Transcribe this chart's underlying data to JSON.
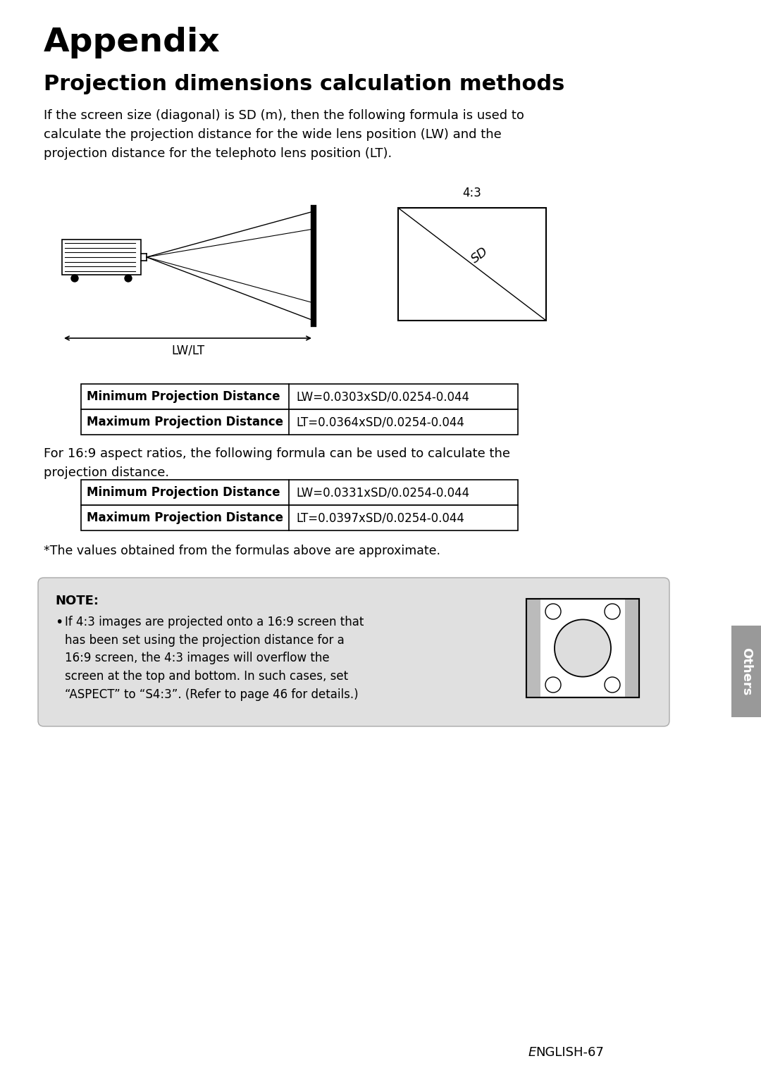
{
  "title": "Appendix",
  "subtitle": "Projection dimensions calculation methods",
  "body_text": "If the screen size (diagonal) is SD (m), then the following formula is used to\ncalculate the projection distance for the wide lens position (LW) and the\nprojection distance for the telephoto lens position (LT).",
  "table1_rows": [
    [
      "Minimum Projection Distance",
      "LW=0.0303xSD/0.0254-0.044"
    ],
    [
      "Maximum Projection Distance",
      "LT=0.0364xSD/0.0254-0.044"
    ]
  ],
  "table2_intro": "For 16:9 aspect ratios, the following formula can be used to calculate the\nprojection distance.",
  "table2_rows": [
    [
      "Minimum Projection Distance",
      "LW=0.0331xSD/0.0254-0.044"
    ],
    [
      "Maximum Projection Distance",
      "LT=0.0397xSD/0.0254-0.044"
    ]
  ],
  "approx_note": "*The values obtained from the formulas above are approximate.",
  "note_title": "NOTE:",
  "note_text": "If 4:3 images are projected onto a 16:9 screen that\nhas been set using the projection distance for a\n16:9 screen, the 4:3 images will overflow the\nscreen at the top and bottom. In such cases, set\n“ASPECT” to “S4:3”. (Refer to page 46 for details.)",
  "diagram_label_43": "4:3",
  "diagram_label_sd": "SD",
  "diagram_label_lwlt": "LW/LT",
  "footer_others": "Others",
  "footer_right": "ENGLISH-67",
  "bg_color": "#ffffff",
  "note_bg": "#e0e0e0",
  "tab_color": "#999999"
}
